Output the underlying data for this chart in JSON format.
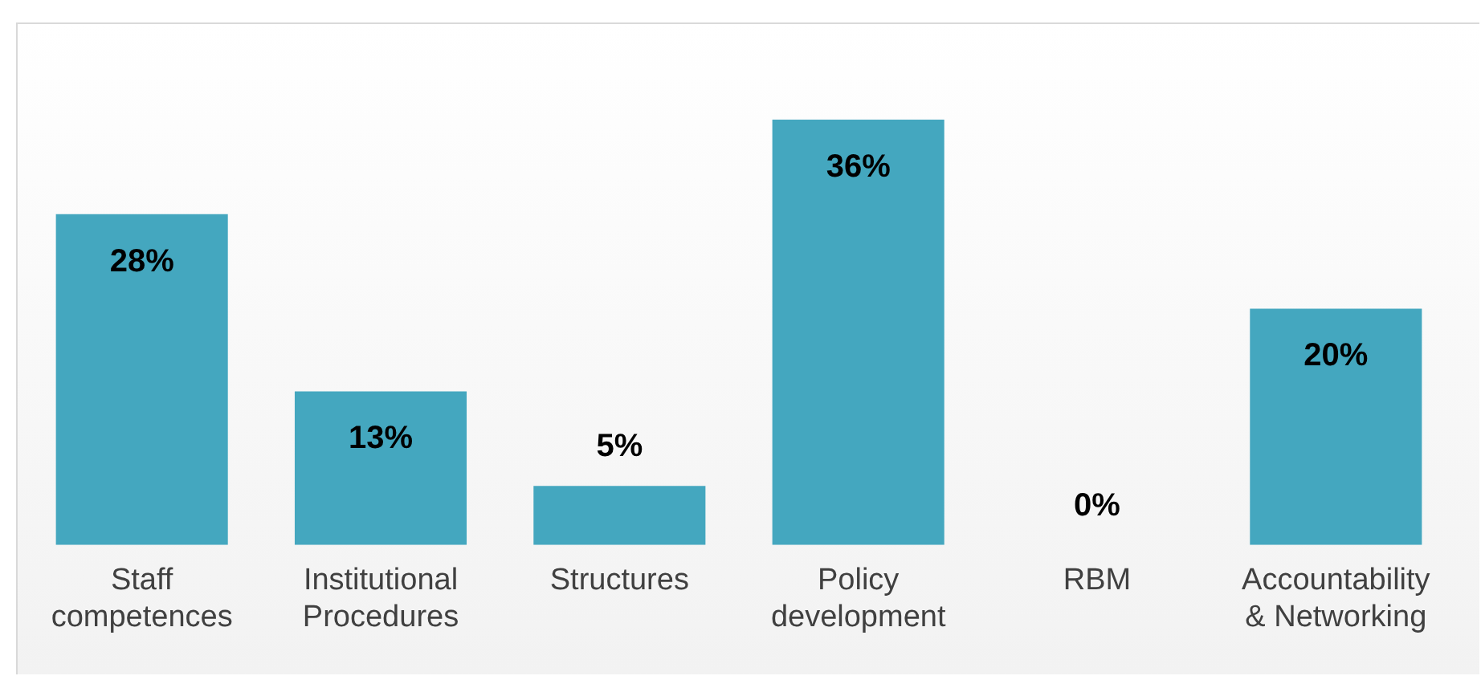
{
  "chart_data": {
    "type": "bar",
    "categories": [
      "Staff competences",
      "Institutional Procedures",
      "Structures",
      "Policy development",
      "RBM",
      "Accountability & Networking"
    ],
    "values": [
      28,
      13,
      5,
      36,
      0,
      20
    ],
    "value_labels": [
      "28%",
      "13%",
      "5%",
      "36%",
      "0%",
      "20%"
    ],
    "color": "#44a7bf",
    "grid": false,
    "legend": false,
    "tick_labels": "x"
  }
}
